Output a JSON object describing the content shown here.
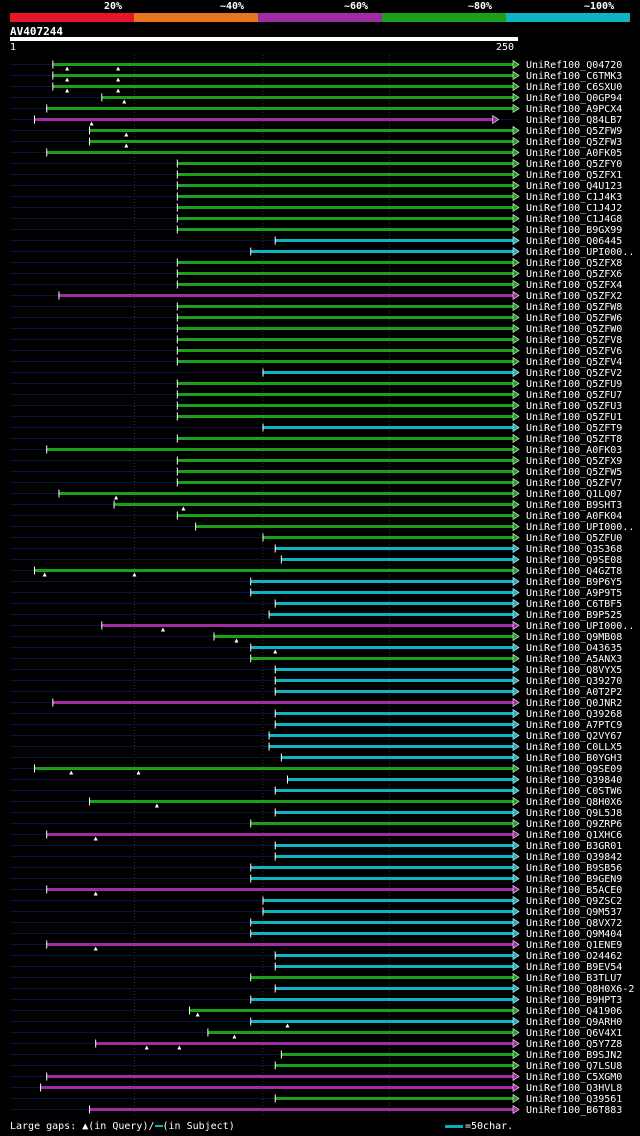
{
  "query_id": "AV407244",
  "identity_legend": [
    {
      "label": "20%",
      "color": "#e8142a"
    },
    {
      "label": "~40%",
      "color": "#e8741e"
    },
    {
      "label": "~60%",
      "color": "#a02ca4"
    },
    {
      "label": "~80%",
      "color": "#1aa01a"
    },
    {
      "label": "~100%",
      "color": "#10b4c0"
    }
  ],
  "ruler": {
    "start_label": "1",
    "end_label": "250"
  },
  "footer": {
    "gap_text": "Large gaps: ▲(in Query)/",
    "gap_text2": "(in Subject)",
    "scale_text": "=50char."
  },
  "chart_data": {
    "type": "alignment",
    "x_range": [
      1,
      250
    ],
    "hits": [
      {
        "name": "UniRef100_Q04720",
        "start": 22,
        "end": 250,
        "color": "#1aa01a",
        "tri": [
          29,
          54
        ],
        "arrow": true
      },
      {
        "name": "UniRef100_C6TMK3",
        "start": 22,
        "end": 250,
        "color": "#1aa01a",
        "tri": [
          29,
          54
        ],
        "arrow": true
      },
      {
        "name": "UniRef100_C6SXU0",
        "start": 22,
        "end": 250,
        "color": "#1aa01a",
        "tri": [
          29,
          54
        ],
        "arrow": true
      },
      {
        "name": "UniRef100_Q0GP94",
        "start": 46,
        "end": 250,
        "color": "#1aa01a",
        "tri": [
          57
        ],
        "arrow": true
      },
      {
        "name": "UniRef100_A9PCX4",
        "start": 19,
        "end": 250,
        "color": "#1aa01a",
        "tri": [],
        "arrow": true
      },
      {
        "name": "UniRef100_Q84LB7",
        "start": 13,
        "end": 240,
        "color": "#a02ca4",
        "tri": [
          41
        ],
        "arrow": true
      },
      {
        "name": "UniRef100_Q5ZFW9",
        "start": 40,
        "end": 250,
        "color": "#1aa01a",
        "tri": [
          58
        ],
        "arrow": true
      },
      {
        "name": "UniRef100_Q5ZFW3",
        "start": 40,
        "end": 250,
        "color": "#1aa01a",
        "tri": [
          58
        ],
        "arrow": true
      },
      {
        "name": "UniRef100_A0FK05",
        "start": 19,
        "end": 250,
        "color": "#1aa01a",
        "tri": [],
        "arrow": true
      },
      {
        "name": "UniRef100_Q5ZFY0",
        "start": 83,
        "end": 250,
        "color": "#1aa01a",
        "tri": [],
        "arrow": true
      },
      {
        "name": "UniRef100_Q5ZFX1",
        "start": 83,
        "end": 250,
        "color": "#1aa01a",
        "tri": [],
        "arrow": true
      },
      {
        "name": "UniRef100_Q4U123",
        "start": 83,
        "end": 250,
        "color": "#1aa01a",
        "tri": [],
        "arrow": true
      },
      {
        "name": "UniRef100_C1J4K3",
        "start": 83,
        "end": 250,
        "color": "#1aa01a",
        "tri": [],
        "arrow": true
      },
      {
        "name": "UniRef100_C1J4J2",
        "start": 83,
        "end": 250,
        "color": "#1aa01a",
        "tri": [],
        "arrow": true
      },
      {
        "name": "UniRef100_C1J4G8",
        "start": 83,
        "end": 250,
        "color": "#1aa01a",
        "tri": [],
        "arrow": true
      },
      {
        "name": "UniRef100_B9GX99",
        "start": 83,
        "end": 250,
        "color": "#1aa01a",
        "tri": [],
        "arrow": true
      },
      {
        "name": "UniRef100_Q06445",
        "start": 131,
        "end": 250,
        "color": "#10b4c0",
        "tri": [],
        "arrow": true
      },
      {
        "name": "UniRef100_UPI000..",
        "start": 119,
        "end": 250,
        "color": "#10b4c0",
        "tri": [],
        "arrow": true
      },
      {
        "name": "UniRef100_Q5ZFX8",
        "start": 83,
        "end": 250,
        "color": "#1aa01a",
        "tri": [],
        "arrow": true
      },
      {
        "name": "UniRef100_Q5ZFX6",
        "start": 83,
        "end": 250,
        "color": "#1aa01a",
        "tri": [],
        "arrow": true
      },
      {
        "name": "UniRef100_Q5ZFX4",
        "start": 83,
        "end": 250,
        "color": "#1aa01a",
        "tri": [],
        "arrow": true
      },
      {
        "name": "UniRef100_Q5ZFX2",
        "start": 25,
        "end": 250,
        "color": "#a02ca4",
        "tri": [],
        "arrow": true
      },
      {
        "name": "UniRef100_Q5ZFW8",
        "start": 83,
        "end": 250,
        "color": "#1aa01a",
        "tri": [],
        "arrow": true
      },
      {
        "name": "UniRef100_Q5ZFW6",
        "start": 83,
        "end": 250,
        "color": "#1aa01a",
        "tri": [],
        "arrow": true
      },
      {
        "name": "UniRef100_Q5ZFW0",
        "start": 83,
        "end": 250,
        "color": "#1aa01a",
        "tri": [],
        "arrow": true
      },
      {
        "name": "UniRef100_Q5ZFV8",
        "start": 83,
        "end": 250,
        "color": "#1aa01a",
        "tri": [],
        "arrow": true
      },
      {
        "name": "UniRef100_Q5ZFV6",
        "start": 83,
        "end": 250,
        "color": "#1aa01a",
        "tri": [],
        "arrow": true
      },
      {
        "name": "UniRef100_Q5ZFV4",
        "start": 83,
        "end": 250,
        "color": "#1aa01a",
        "tri": [],
        "arrow": true
      },
      {
        "name": "UniRef100_Q5ZFV2",
        "start": 125,
        "end": 250,
        "color": "#10b4c0",
        "tri": [],
        "arrow": true
      },
      {
        "name": "UniRef100_Q5ZFU9",
        "start": 83,
        "end": 250,
        "color": "#1aa01a",
        "tri": [],
        "arrow": true
      },
      {
        "name": "UniRef100_Q5ZFU7",
        "start": 83,
        "end": 250,
        "color": "#1aa01a",
        "tri": [],
        "arrow": true
      },
      {
        "name": "UniRef100_Q5ZFU3",
        "start": 83,
        "end": 250,
        "color": "#1aa01a",
        "tri": [],
        "arrow": true
      },
      {
        "name": "UniRef100_Q5ZFU1",
        "start": 83,
        "end": 250,
        "color": "#1aa01a",
        "tri": [],
        "arrow": true
      },
      {
        "name": "UniRef100_Q5ZFT9",
        "start": 125,
        "end": 250,
        "color": "#10b4c0",
        "tri": [],
        "arrow": true
      },
      {
        "name": "UniRef100_Q5ZFT8",
        "start": 83,
        "end": 250,
        "color": "#1aa01a",
        "tri": [],
        "arrow": true
      },
      {
        "name": "UniRef100_A0FK03",
        "start": 19,
        "end": 250,
        "color": "#1aa01a",
        "tri": [],
        "arrow": true
      },
      {
        "name": "UniRef100_Q5ZFX9",
        "start": 83,
        "end": 250,
        "color": "#1aa01a",
        "tri": [],
        "arrow": true
      },
      {
        "name": "UniRef100_Q5ZFW5",
        "start": 83,
        "end": 250,
        "color": "#1aa01a",
        "tri": [],
        "arrow": true
      },
      {
        "name": "UniRef100_Q5ZFV7",
        "start": 83,
        "end": 250,
        "color": "#1aa01a",
        "tri": [],
        "arrow": true
      },
      {
        "name": "UniRef100_Q1LQ07",
        "start": 25,
        "end": 250,
        "color": "#1aa01a",
        "tri": [
          53
        ],
        "arrow": true
      },
      {
        "name": "UniRef100_B9SHT3",
        "start": 52,
        "end": 250,
        "color": "#1aa01a",
        "tri": [
          86
        ],
        "arrow": true
      },
      {
        "name": "UniRef100_A0FK04",
        "start": 83,
        "end": 250,
        "color": "#1aa01a",
        "tri": [],
        "arrow": true
      },
      {
        "name": "UniRef100_UPI000..",
        "start": 92,
        "end": 250,
        "color": "#1aa01a",
        "tri": [],
        "arrow": true
      },
      {
        "name": "UniRef100_Q5ZFU0",
        "start": 125,
        "end": 250,
        "color": "#1aa01a",
        "tri": [],
        "arrow": true
      },
      {
        "name": "UniRef100_Q3S368",
        "start": 131,
        "end": 250,
        "color": "#10b4c0",
        "tri": [],
        "arrow": true
      },
      {
        "name": "UniRef100_Q9SE08",
        "start": 134,
        "end": 250,
        "color": "#10b4c0",
        "tri": [],
        "arrow": true
      },
      {
        "name": "UniRef100_Q4GZT8",
        "start": 13,
        "end": 250,
        "color": "#1aa01a",
        "tri": [
          18,
          62
        ],
        "arrow": true
      },
      {
        "name": "UniRef100_B9P6Y5",
        "start": 119,
        "end": 250,
        "color": "#10b4c0",
        "tri": [],
        "arrow": true
      },
      {
        "name": "UniRef100_A9P9T5",
        "start": 119,
        "end": 250,
        "color": "#10b4c0",
        "tri": [],
        "arrow": true
      },
      {
        "name": "UniRef100_C6TBF5",
        "start": 131,
        "end": 250,
        "color": "#10b4c0",
        "tri": [],
        "arrow": true
      },
      {
        "name": "UniRef100_B9P525",
        "start": 128,
        "end": 250,
        "color": "#10b4c0",
        "tri": [],
        "arrow": true
      },
      {
        "name": "UniRef100_UPI000..",
        "start": 46,
        "end": 250,
        "color": "#a02ca4",
        "tri": [
          76
        ],
        "arrow": true
      },
      {
        "name": "UniRef100_Q9MB08",
        "start": 101,
        "end": 250,
        "color": "#1aa01a",
        "tri": [
          112
        ],
        "arrow": true
      },
      {
        "name": "UniRef100_O43635",
        "start": 119,
        "end": 250,
        "color": "#10b4c0",
        "tri": [
          131
        ],
        "arrow": true
      },
      {
        "name": "UniRef100_A5ANX3",
        "start": 119,
        "end": 250,
        "color": "#1aa01a",
        "tri": [],
        "arrow": true
      },
      {
        "name": "UniRef100_Q8VYX5",
        "start": 131,
        "end": 250,
        "color": "#10b4c0",
        "tri": [],
        "arrow": true
      },
      {
        "name": "UniRef100_Q39270",
        "start": 131,
        "end": 250,
        "color": "#10b4c0",
        "tri": [],
        "arrow": true
      },
      {
        "name": "UniRef100_A0T2P2",
        "start": 131,
        "end": 250,
        "color": "#10b4c0",
        "tri": [],
        "arrow": true
      },
      {
        "name": "UniRef100_Q0JNR2",
        "start": 22,
        "end": 250,
        "color": "#a02ca4",
        "tri": [],
        "arrow": true
      },
      {
        "name": "UniRef100_Q39268",
        "start": 131,
        "end": 250,
        "color": "#10b4c0",
        "tri": [],
        "arrow": true
      },
      {
        "name": "UniRef100_A7PTC9",
        "start": 131,
        "end": 250,
        "color": "#10b4c0",
        "tri": [],
        "arrow": true
      },
      {
        "name": "UniRef100_Q2VY67",
        "start": 128,
        "end": 250,
        "color": "#10b4c0",
        "tri": [],
        "arrow": true
      },
      {
        "name": "UniRef100_C0LLX5",
        "start": 128,
        "end": 250,
        "color": "#10b4c0",
        "tri": [],
        "arrow": true
      },
      {
        "name": "UniRef100_B0YGH3",
        "start": 134,
        "end": 250,
        "color": "#10b4c0",
        "tri": [],
        "arrow": true
      },
      {
        "name": "UniRef100_Q9SE09",
        "start": 13,
        "end": 250,
        "color": "#1aa01a",
        "tri": [
          31,
          64
        ],
        "arrow": true
      },
      {
        "name": "UniRef100_Q39840",
        "start": 137,
        "end": 250,
        "color": "#10b4c0",
        "tri": [],
        "arrow": true
      },
      {
        "name": "UniRef100_C0STW6",
        "start": 131,
        "end": 250,
        "color": "#10b4c0",
        "tri": [],
        "arrow": true
      },
      {
        "name": "UniRef100_Q8H0X6",
        "start": 40,
        "end": 250,
        "color": "#1aa01a",
        "tri": [
          73
        ],
        "arrow": true
      },
      {
        "name": "UniRef100_Q9L5J8",
        "start": 131,
        "end": 250,
        "color": "#10b4c0",
        "tri": [],
        "arrow": true
      },
      {
        "name": "UniRef100_Q9ZRP6",
        "start": 119,
        "end": 250,
        "color": "#1aa01a",
        "tri": [],
        "arrow": true
      },
      {
        "name": "UniRef100_Q1XHC6",
        "start": 19,
        "end": 250,
        "color": "#a02ca4",
        "tri": [
          43
        ],
        "arrow": true
      },
      {
        "name": "UniRef100_B3GR01",
        "start": 131,
        "end": 250,
        "color": "#10b4c0",
        "tri": [],
        "arrow": true
      },
      {
        "name": "UniRef100_Q39842",
        "start": 131,
        "end": 250,
        "color": "#10b4c0",
        "tri": [],
        "arrow": true
      },
      {
        "name": "UniRef100_B9SB56",
        "start": 119,
        "end": 250,
        "color": "#10b4c0",
        "tri": [],
        "arrow": true
      },
      {
        "name": "UniRef100_B9GEN9",
        "start": 119,
        "end": 250,
        "color": "#10b4c0",
        "tri": [],
        "arrow": true
      },
      {
        "name": "UniRef100_B5ACE0",
        "start": 19,
        "end": 250,
        "color": "#a02ca4",
        "tri": [
          43
        ],
        "arrow": true
      },
      {
        "name": "UniRef100_Q9ZSC2",
        "start": 125,
        "end": 250,
        "color": "#10b4c0",
        "tri": [],
        "arrow": true
      },
      {
        "name": "UniRef100_Q9M537",
        "start": 125,
        "end": 250,
        "color": "#10b4c0",
        "tri": [],
        "arrow": true
      },
      {
        "name": "UniRef100_Q8VX72",
        "start": 119,
        "end": 250,
        "color": "#10b4c0",
        "tri": [],
        "arrow": true
      },
      {
        "name": "UniRef100_Q9M404",
        "start": 119,
        "end": 250,
        "color": "#10b4c0",
        "tri": [],
        "arrow": true
      },
      {
        "name": "UniRef100_Q1ENE9",
        "start": 19,
        "end": 250,
        "color": "#a02ca4",
        "tri": [
          43
        ],
        "arrow": true
      },
      {
        "name": "UniRef100_O24462",
        "start": 131,
        "end": 250,
        "color": "#10b4c0",
        "tri": [],
        "arrow": true
      },
      {
        "name": "UniRef100_B9EV54",
        "start": 131,
        "end": 250,
        "color": "#10b4c0",
        "tri": [],
        "arrow": true
      },
      {
        "name": "UniRef100_B3TLU7",
        "start": 119,
        "end": 250,
        "color": "#1aa01a",
        "tri": [],
        "arrow": true
      },
      {
        "name": "UniRef100_Q8H0X6-2",
        "start": 131,
        "end": 250,
        "color": "#10b4c0",
        "tri": [],
        "arrow": true
      },
      {
        "name": "UniRef100_B9HPT3",
        "start": 119,
        "end": 250,
        "color": "#10b4c0",
        "tri": [],
        "arrow": true
      },
      {
        "name": "UniRef100_Q41906",
        "start": 89,
        "end": 250,
        "color": "#1aa01a",
        "tri": [
          93
        ],
        "arrow": true
      },
      {
        "name": "UniRef100_Q9ARH0",
        "start": 119,
        "end": 250,
        "color": "#10b4c0",
        "tri": [
          137
        ],
        "arrow": true
      },
      {
        "name": "UniRef100_Q6V4X1",
        "start": 98,
        "end": 250,
        "color": "#1aa01a",
        "tri": [
          111
        ],
        "arrow": true
      },
      {
        "name": "UniRef100_Q5Y7Z8",
        "start": 43,
        "end": 250,
        "color": "#a02ca4",
        "tri": [
          68,
          84
        ],
        "arrow": true
      },
      {
        "name": "UniRef100_B9SJN2",
        "start": 134,
        "end": 250,
        "color": "#1aa01a",
        "tri": [],
        "arrow": true
      },
      {
        "name": "UniRef100_Q7LSU8",
        "start": 131,
        "end": 250,
        "color": "#1aa01a",
        "tri": [],
        "arrow": true
      },
      {
        "name": "UniRef100_C5XGM0",
        "start": 19,
        "end": 250,
        "color": "#a02ca4",
        "tri": [],
        "arrow": true
      },
      {
        "name": "UniRef100_Q3HVL8",
        "start": 16,
        "end": 250,
        "color": "#a02ca4",
        "tri": [],
        "arrow": true
      },
      {
        "name": "UniRef100_Q39561",
        "start": 131,
        "end": 250,
        "color": "#1aa01a",
        "tri": [],
        "arrow": true
      },
      {
        "name": "UniRef100_B6T883",
        "start": 40,
        "end": 250,
        "color": "#a02ca4",
        "tri": [],
        "arrow": true
      }
    ]
  }
}
